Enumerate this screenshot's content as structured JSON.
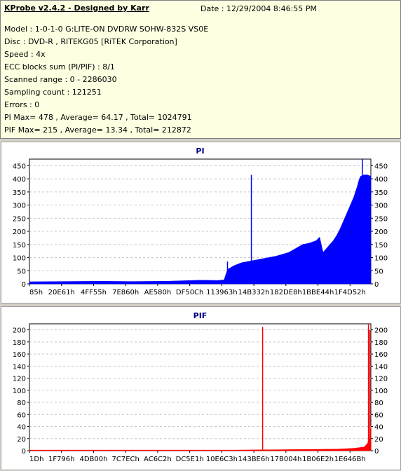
{
  "header": {
    "title": "KProbe v2.4.2 - Designed by Karr",
    "date": "Date :  12/29/2004 8:46:55 PM",
    "lines": [
      "Model : 1-0-1-0 G:LITE-ON DVDRW SOHW-832S  VS0E",
      "Disc : DVD-R , RITEKG05 [RiTEK Corporation]",
      "Speed : 4x",
      "ECC blocks sum (PI/PIF) : 8/1",
      "Scanned range : 0 - 2286030",
      "Sampling count : 121251",
      "Errors : 0",
      "PI Max= 478 , Average= 64.17 , Total= 1024791",
      "PIF Max= 215 , Average= 13.34 , Total= 212872"
    ]
  },
  "colors": {
    "pi": "#0000ff",
    "pif": "#ff0000",
    "grid": "#c8c8c8",
    "info_bg": "#ffffe1"
  },
  "chart_data": [
    {
      "type": "area",
      "title": "PI",
      "ylim": [
        0,
        475
      ],
      "yticks": [
        0,
        50,
        100,
        150,
        200,
        250,
        300,
        350,
        400,
        450
      ],
      "xticklabels": [
        "85h",
        "20E61h",
        "4FF55h",
        "7E860h",
        "AE580h",
        "DF50Ch",
        "113963h",
        "14B332h",
        "182DE8h",
        "1BBE44h",
        "1F4D52h"
      ],
      "grid": true,
      "x": [
        0.0,
        0.1,
        0.2,
        0.3,
        0.4,
        0.45,
        0.5,
        0.55,
        0.57,
        0.58,
        0.6,
        0.62,
        0.64,
        0.66,
        0.68,
        0.7,
        0.72,
        0.74,
        0.76,
        0.78,
        0.8,
        0.82,
        0.84,
        0.85,
        0.86,
        0.87,
        0.88,
        0.89,
        0.9,
        0.91,
        0.92,
        0.93,
        0.94,
        0.95,
        0.96,
        0.965,
        0.97,
        0.98,
        0.99,
        1.0
      ],
      "values": [
        8,
        9,
        10,
        9,
        10,
        12,
        14,
        13,
        15,
        55,
        70,
        80,
        85,
        90,
        95,
        100,
        105,
        112,
        120,
        135,
        150,
        155,
        165,
        178,
        120,
        135,
        150,
        165,
        185,
        210,
        240,
        270,
        300,
        330,
        370,
        395,
        410,
        415,
        415,
        410
      ],
      "spikes": [
        {
          "x": 0.58,
          "value": 85
        },
        {
          "x": 0.65,
          "value": 415
        },
        {
          "x": 0.975,
          "value": 475
        }
      ]
    },
    {
      "type": "area",
      "title": "PIF",
      "ylim": [
        0,
        210
      ],
      "yticks": [
        0,
        20,
        40,
        60,
        80,
        100,
        120,
        140,
        160,
        180,
        200
      ],
      "xticklabels": [
        "1Dh",
        "1F796h",
        "4DB00h",
        "7C7ECh",
        "AC6C2h",
        "DC5E1h",
        "10E6C3h",
        "143BE6h",
        "17B004h",
        "1B06E2h",
        "1E646Bh"
      ],
      "grid": true,
      "x": [
        0.0,
        0.2,
        0.4,
        0.6,
        0.7,
        0.8,
        0.9,
        0.95,
        0.98,
        0.99,
        0.995,
        1.0
      ],
      "values": [
        1,
        1,
        1,
        1,
        1.5,
        2,
        2.5,
        4,
        6,
        12,
        20,
        40
      ],
      "spikes": [
        {
          "x": 0.683,
          "value": 205
        },
        {
          "x": 0.993,
          "value": 210
        },
        {
          "x": 0.997,
          "value": 200
        }
      ]
    }
  ]
}
